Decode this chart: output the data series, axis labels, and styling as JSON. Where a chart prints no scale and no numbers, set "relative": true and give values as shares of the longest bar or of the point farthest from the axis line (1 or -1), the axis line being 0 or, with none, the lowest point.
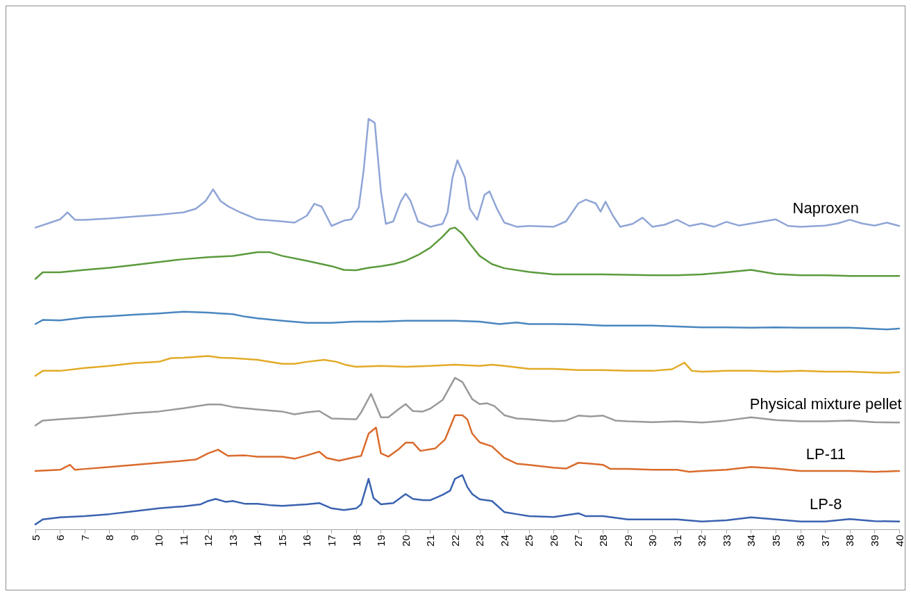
{
  "chart_data": {
    "type": "line",
    "relative": true,
    "xlim": [
      5,
      40
    ],
    "xticks": [
      5,
      6,
      7,
      8,
      9,
      10,
      11,
      12,
      13,
      14,
      15,
      16,
      17,
      18,
      19,
      20,
      21,
      22,
      23,
      24,
      25,
      26,
      27,
      28,
      29,
      30,
      31,
      32,
      33,
      34,
      35,
      36,
      37,
      38,
      39,
      40
    ],
    "grid": false,
    "legend": false,
    "marker": "none",
    "line_style": "solid",
    "series": [
      {
        "name": "Naproxen",
        "color": "#8fa5d6",
        "x": [
          5,
          5.5,
          6,
          6.3,
          6.6,
          7,
          8,
          9,
          10,
          11,
          11.5,
          11.9,
          12.2,
          12.5,
          12.8,
          13.3,
          14,
          15,
          15.5,
          16,
          16.3,
          16.6,
          17,
          17.5,
          17.8,
          18.1,
          18.3,
          18.5,
          18.75,
          19,
          19.2,
          19.5,
          19.8,
          20,
          20.2,
          20.5,
          21,
          21.5,
          21.7,
          21.9,
          22.1,
          22.4,
          22.6,
          22.9,
          23.2,
          23.4,
          23.7,
          24,
          24.5,
          25,
          26,
          26.5,
          27,
          27.3,
          27.7,
          27.9,
          28.1,
          28.4,
          28.7,
          29.2,
          29.6,
          30,
          30.5,
          31,
          31.5,
          32,
          32.5,
          33,
          33.5,
          34,
          34.5,
          35,
          35.5,
          36,
          37,
          37.5,
          38,
          38.5,
          39,
          39.5,
          40
        ],
        "values": [
          0.735,
          0.745,
          0.755,
          0.772,
          0.754,
          0.754,
          0.757,
          0.762,
          0.766,
          0.772,
          0.781,
          0.8,
          0.828,
          0.8,
          0.787,
          0.772,
          0.755,
          0.75,
          0.747,
          0.764,
          0.793,
          0.786,
          0.739,
          0.752,
          0.755,
          0.784,
          0.874,
          1,
          0.99,
          0.823,
          0.744,
          0.75,
          0.798,
          0.818,
          0.8,
          0.75,
          0.737,
          0.744,
          0.772,
          0.857,
          0.899,
          0.857,
          0.781,
          0.754,
          0.815,
          0.823,
          0.781,
          0.747,
          0.737,
          0.739,
          0.737,
          0.75,
          0.794,
          0.803,
          0.794,
          0.774,
          0.798,
          0.764,
          0.737,
          0.744,
          0.759,
          0.737,
          0.742,
          0.754,
          0.739,
          0.745,
          0.737,
          0.749,
          0.74,
          0.745,
          0.75,
          0.755,
          0.739,
          0.737,
          0.74,
          0.745,
          0.754,
          0.745,
          0.74,
          0.747,
          0.739
        ]
      },
      {
        "color": "#5b9a3c",
        "x": [
          5,
          5.3,
          6,
          7,
          8,
          9,
          10,
          11,
          12,
          13,
          14,
          14.5,
          15,
          16,
          17,
          17.5,
          18,
          18.5,
          19,
          19.5,
          20,
          20.5,
          21,
          21.5,
          21.8,
          22,
          22.3,
          22.6,
          23,
          23.5,
          24,
          25,
          26,
          27,
          28,
          30,
          31,
          32,
          33,
          34,
          35,
          36,
          37,
          38,
          39,
          40
        ],
        "values": [
          0.61,
          0.626,
          0.626,
          0.632,
          0.637,
          0.644,
          0.651,
          0.658,
          0.663,
          0.666,
          0.675,
          0.675,
          0.666,
          0.654,
          0.641,
          0.632,
          0.631,
          0.637,
          0.641,
          0.646,
          0.654,
          0.668,
          0.686,
          0.713,
          0.732,
          0.735,
          0.72,
          0.696,
          0.666,
          0.646,
          0.636,
          0.627,
          0.621,
          0.621,
          0.621,
          0.619,
          0.619,
          0.621,
          0.626,
          0.632,
          0.622,
          0.619,
          0.619,
          0.617,
          0.617,
          0.617
        ]
      },
      {
        "color": "#4a86bf",
        "x": [
          5,
          5.3,
          6,
          7,
          8,
          9,
          10,
          11,
          12,
          12.5,
          13,
          13.5,
          14,
          15,
          16,
          17,
          18,
          19,
          20,
          21,
          22,
          23,
          23.8,
          24.5,
          25,
          26,
          27,
          28,
          29,
          30,
          31,
          32,
          33,
          34,
          35,
          36,
          37,
          38,
          39.5,
          40
        ],
        "values": [
          0.5,
          0.51,
          0.509,
          0.516,
          0.519,
          0.523,
          0.526,
          0.53,
          0.528,
          0.526,
          0.524,
          0.518,
          0.514,
          0.508,
          0.503,
          0.503,
          0.506,
          0.506,
          0.508,
          0.508,
          0.508,
          0.506,
          0.5,
          0.504,
          0.5,
          0.5,
          0.499,
          0.496,
          0.496,
          0.496,
          0.494,
          0.492,
          0.492,
          0.491,
          0.492,
          0.491,
          0.491,
          0.491,
          0.487,
          0.489
        ]
      },
      {
        "color": "#e2ab27",
        "x": [
          5,
          5.3,
          6,
          7,
          8,
          9,
          10,
          10.5,
          11,
          11.5,
          12,
          12.5,
          13,
          14,
          15,
          15.5,
          16,
          16.7,
          17.2,
          17.6,
          18,
          19,
          20,
          21,
          22,
          23,
          23.5,
          24,
          25,
          26,
          27,
          28,
          29,
          30,
          30.8,
          31.3,
          31.6,
          32,
          33,
          34,
          35,
          36,
          37,
          38,
          39.5,
          40
        ],
        "values": [
          0.374,
          0.386,
          0.386,
          0.393,
          0.398,
          0.405,
          0.408,
          0.417,
          0.418,
          0.42,
          0.422,
          0.418,
          0.417,
          0.413,
          0.403,
          0.403,
          0.408,
          0.413,
          0.408,
          0.4,
          0.396,
          0.398,
          0.396,
          0.398,
          0.401,
          0.398,
          0.401,
          0.398,
          0.391,
          0.391,
          0.388,
          0.388,
          0.386,
          0.386,
          0.39,
          0.406,
          0.386,
          0.384,
          0.386,
          0.386,
          0.384,
          0.386,
          0.384,
          0.384,
          0.381,
          0.383
        ]
      },
      {
        "name": "Physical mixture pellet",
        "color": "#999999",
        "x": [
          5,
          5.3,
          6,
          7,
          8,
          9,
          10,
          11,
          12,
          12.5,
          13,
          14,
          15,
          15.5,
          16,
          16.5,
          17,
          18,
          18.2,
          18.6,
          19,
          19.3,
          19.7,
          20,
          20.3,
          20.7,
          21,
          21.5,
          22,
          22.3,
          22.7,
          23,
          23.3,
          23.6,
          24,
          24.5,
          25,
          26,
          26.5,
          27,
          27.5,
          28,
          28.5,
          29,
          30,
          31,
          32,
          33,
          34,
          35,
          36,
          37,
          38,
          39,
          40
        ],
        "values": [
          0.253,
          0.265,
          0.268,
          0.272,
          0.277,
          0.283,
          0.287,
          0.295,
          0.304,
          0.304,
          0.298,
          0.292,
          0.287,
          0.28,
          0.285,
          0.288,
          0.27,
          0.268,
          0.285,
          0.33,
          0.273,
          0.273,
          0.292,
          0.305,
          0.288,
          0.287,
          0.294,
          0.315,
          0.369,
          0.359,
          0.317,
          0.305,
          0.307,
          0.3,
          0.278,
          0.27,
          0.268,
          0.263,
          0.265,
          0.277,
          0.275,
          0.277,
          0.265,
          0.263,
          0.261,
          0.263,
          0.26,
          0.265,
          0.273,
          0.266,
          0.263,
          0.263,
          0.265,
          0.261,
          0.26
        ]
      },
      {
        "name": "LP-11",
        "color": "#d96b2c",
        "x": [
          5,
          6,
          6.4,
          6.6,
          7,
          8,
          9,
          10,
          11,
          11.5,
          12,
          12.4,
          12.8,
          13.5,
          14,
          15,
          15.5,
          16,
          16.5,
          16.8,
          17.3,
          17.8,
          18.2,
          18.5,
          18.8,
          19,
          19.3,
          19.7,
          20,
          20.3,
          20.6,
          21.2,
          21.6,
          22,
          22.3,
          22.5,
          22.7,
          23,
          23.5,
          24,
          24.5,
          25,
          26,
          26.5,
          27,
          27.5,
          28,
          28.3,
          29,
          30,
          31,
          31.5,
          32,
          33,
          34,
          35,
          36,
          37,
          38,
          39,
          40
        ],
        "values": [
          0.142,
          0.145,
          0.157,
          0.145,
          0.147,
          0.152,
          0.157,
          0.162,
          0.167,
          0.17,
          0.185,
          0.194,
          0.179,
          0.18,
          0.177,
          0.177,
          0.172,
          0.18,
          0.189,
          0.174,
          0.167,
          0.174,
          0.179,
          0.233,
          0.248,
          0.185,
          0.177,
          0.194,
          0.211,
          0.211,
          0.191,
          0.197,
          0.219,
          0.278,
          0.278,
          0.268,
          0.233,
          0.212,
          0.202,
          0.174,
          0.16,
          0.157,
          0.15,
          0.148,
          0.162,
          0.16,
          0.157,
          0.147,
          0.147,
          0.145,
          0.145,
          0.14,
          0.142,
          0.145,
          0.152,
          0.148,
          0.142,
          0.142,
          0.142,
          0.14,
          0.142
        ]
      },
      {
        "name": "LP-8",
        "color": "#3a62b0",
        "x": [
          5,
          5.3,
          6,
          7,
          8,
          9,
          10,
          11,
          11.7,
          12,
          12.3,
          12.7,
          13,
          13.5,
          14,
          14.5,
          15,
          16,
          16.5,
          17,
          17.5,
          18,
          18.2,
          18.5,
          18.7,
          19,
          19.5,
          20,
          20.3,
          20.7,
          21,
          21.5,
          21.8,
          22,
          22.3,
          22.5,
          22.7,
          23,
          23.5,
          24,
          24.5,
          25,
          26,
          27,
          27.3,
          27.8,
          28,
          29,
          30,
          31,
          32,
          33,
          34,
          35,
          36,
          37,
          38,
          39,
          40
        ],
        "values": [
          0.012,
          0.024,
          0.029,
          0.032,
          0.037,
          0.044,
          0.051,
          0.056,
          0.061,
          0.069,
          0.074,
          0.067,
          0.069,
          0.062,
          0.062,
          0.059,
          0.057,
          0.061,
          0.064,
          0.051,
          0.047,
          0.051,
          0.061,
          0.123,
          0.076,
          0.061,
          0.064,
          0.086,
          0.074,
          0.071,
          0.071,
          0.084,
          0.094,
          0.123,
          0.132,
          0.103,
          0.086,
          0.073,
          0.069,
          0.042,
          0.037,
          0.032,
          0.03,
          0.039,
          0.032,
          0.032,
          0.032,
          0.024,
          0.024,
          0.024,
          0.019,
          0.022,
          0.029,
          0.024,
          0.019,
          0.019,
          0.025,
          0.02,
          0.019
        ]
      }
    ]
  }
}
